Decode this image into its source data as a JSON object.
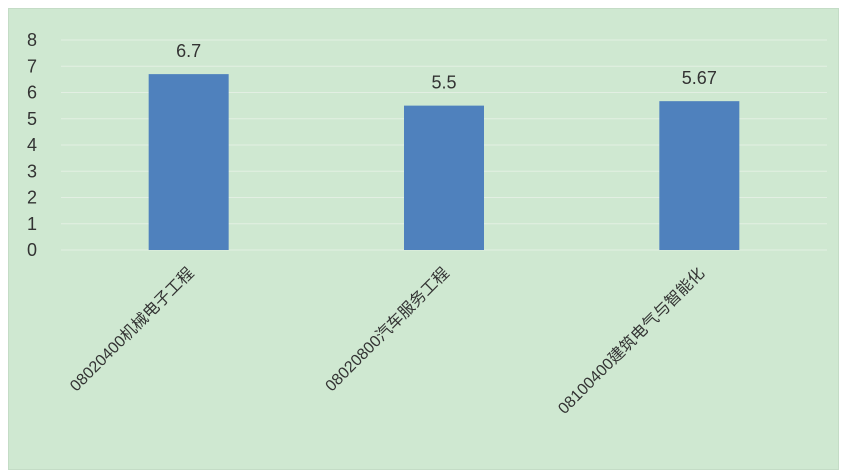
{
  "chart_data": {
    "type": "bar",
    "categories": [
      "08020400机械电子工程",
      "08020800汽车服务工程",
      "08100400建筑电气与智能化"
    ],
    "values": [
      6.7,
      5.5,
      5.67
    ],
    "data_labels": [
      "6.7",
      "5.5",
      "5.67"
    ],
    "title": "",
    "xlabel": "",
    "ylabel": "",
    "ylim": [
      0,
      8
    ],
    "yticks": [
      "0",
      "1",
      "2",
      "3",
      "4",
      "5",
      "6",
      "7",
      "8"
    ],
    "grid": true,
    "legend": "none"
  },
  "colors": {
    "bar": "#4f81bd",
    "plot_background": "#cfe8d1",
    "gridline": "#e3efe3",
    "text": "#333333"
  }
}
